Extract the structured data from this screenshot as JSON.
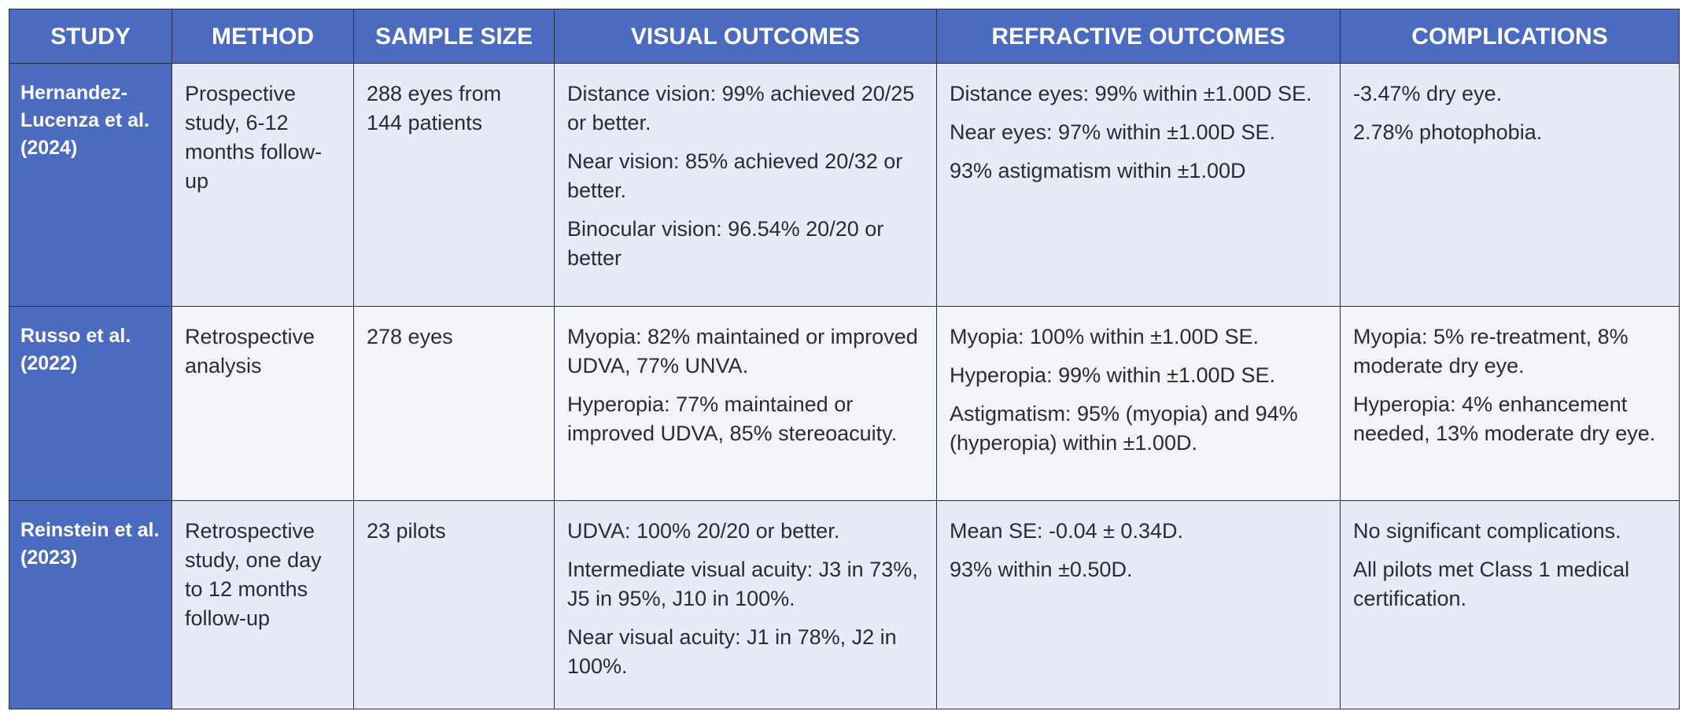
{
  "table": {
    "header": [
      "STUDY",
      "METHOD",
      "SAMPLE SIZE",
      "VISUAL OUTCOMES",
      "REFRACTIVE OUTCOMES",
      "COMPLICATIONS"
    ],
    "rows": [
      [
        [
          "Hernandez-Lucenza et al. (2024)"
        ],
        [
          "Prospective study, 6-12 months follow-up"
        ],
        [
          "288 eyes from 144 patients"
        ],
        [
          "Distance vision: 99% achieved 20/25 or better.",
          "Near vision: 85% achieved 20/32 or better.",
          "Binocular vision: 96.54% 20/20 or better"
        ],
        [
          "Distance eyes: 99% within ±1.00D SE.",
          "Near eyes: 97% within ±1.00D SE.",
          "93% astigmatism within ±1.00D"
        ],
        [
          "-3.47% dry eye.",
          "2.78% photophobia."
        ]
      ],
      [
        [
          "Russo et al. (2022)"
        ],
        [
          "Retrospective analysis"
        ],
        [
          "278 eyes"
        ],
        [
          "Myopia: 82% maintained or improved UDVA, 77% UNVA.",
          "Hyperopia: 77% maintained or improved UDVA, 85% stereoacuity."
        ],
        [
          "Myopia: 100% within ±1.00D SE.",
          "Hyperopia: 99% within ±1.00D SE.",
          "Astigmatism: 95% (myopia) and 94% (hyperopia) within ±1.00D."
        ],
        [
          "Myopia: 5% re-treatment, 8% moderate dry eye.",
          "Hyperopia: 4% enhancement needed, 13% moderate dry eye."
        ]
      ],
      [
        [
          "Reinstein et al. (2023)"
        ],
        [
          "Retrospective study, one day to 12 months follow-up"
        ],
        [
          "23 pilots"
        ],
        [
          "UDVA: 100% 20/20 or better.",
          "Intermediate visual acuity: J3 in 73%, J5 in 95%, J10 in 100%.",
          "Near visual acuity: J1 in 78%, J2 in 100%."
        ],
        [
          "Mean SE: -0.04 ± 0.34D.",
          "93% within ±0.50D."
        ],
        [
          "No significant complications.",
          "All pilots met Class 1 medical certification."
        ]
      ]
    ]
  }
}
